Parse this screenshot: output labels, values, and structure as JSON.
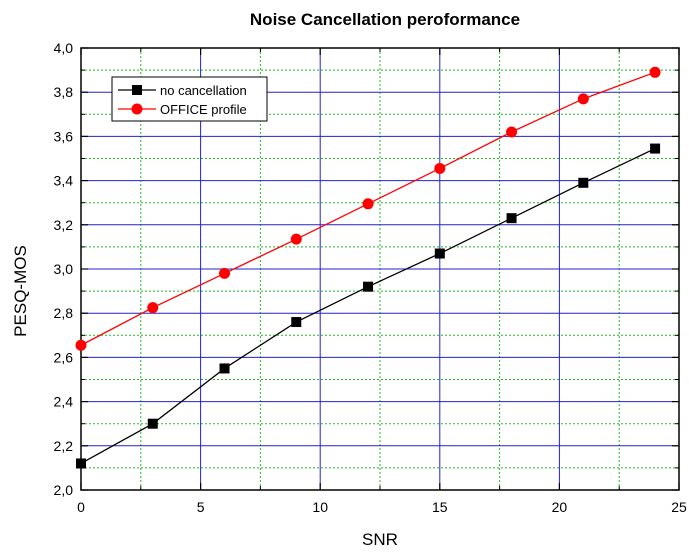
{
  "chart_data": {
    "type": "line",
    "title": "Noise Cancellation peroformance",
    "xlabel": "SNR",
    "ylabel": "PESQ-MOS",
    "xlim": [
      0,
      25
    ],
    "ylim": [
      2.0,
      4.0
    ],
    "x_major_ticks": [
      0,
      5,
      10,
      15,
      20,
      25
    ],
    "x_tick_labels": [
      "0",
      "5",
      "10",
      "15",
      "20",
      "25"
    ],
    "y_major_ticks": [
      2.0,
      2.2,
      2.4,
      2.6,
      2.8,
      3.0,
      3.2,
      3.4,
      3.6,
      3.8,
      4.0
    ],
    "y_tick_labels": [
      "2,0",
      "2,2",
      "2,4",
      "2,6",
      "2,8",
      "3,0",
      "3,2",
      "3,4",
      "3,6",
      "3,8",
      "4,0"
    ],
    "grid": true,
    "legend_position": "top-left",
    "colors": {
      "major_grid": "#2222cc",
      "minor_grid": "#22bb22",
      "axis": "#000000"
    },
    "series": [
      {
        "name": "no cancellation",
        "color": "#000000",
        "marker": "square",
        "x": [
          0,
          3,
          6,
          9,
          12,
          15,
          18,
          21,
          24
        ],
        "y": [
          2.12,
          2.3,
          2.55,
          2.76,
          2.92,
          3.07,
          3.23,
          3.39,
          3.545
        ]
      },
      {
        "name": "OFFICE profile",
        "color": "#ff0000",
        "marker": "circle",
        "x": [
          0,
          3,
          6,
          9,
          12,
          15,
          18,
          21,
          24
        ],
        "y": [
          2.655,
          2.825,
          2.98,
          3.135,
          3.295,
          3.455,
          3.62,
          3.77,
          3.89
        ]
      }
    ]
  }
}
